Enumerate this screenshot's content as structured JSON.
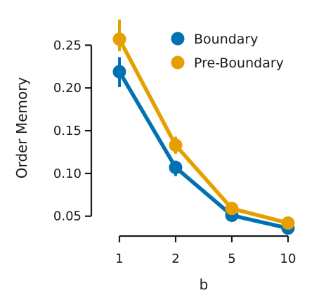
{
  "chart_data": {
    "type": "line",
    "title": "",
    "xlabel": "b",
    "ylabel": "Order Memory",
    "categories": [
      "1",
      "2",
      "5",
      "10"
    ],
    "ylim": [
      0.035,
      0.27
    ],
    "yticks": [
      "0.05",
      "0.10",
      "0.15",
      "0.20",
      "0.25"
    ],
    "grid": false,
    "legend_position": "top-right",
    "series": [
      {
        "name": "Boundary",
        "color": "#0072B2",
        "values": [
          0.219,
          0.107,
          0.051,
          0.036
        ],
        "err_low": [
          0.201,
          0.097,
          0.047,
          0.034
        ],
        "err_high": [
          0.236,
          0.115,
          0.055,
          0.038
        ]
      },
      {
        "name": "Pre-Boundary",
        "color": "#E69F00",
        "values": [
          0.257,
          0.133,
          0.059,
          0.042
        ],
        "err_low": [
          0.243,
          0.123,
          0.055,
          0.04
        ],
        "err_high": [
          0.28,
          0.143,
          0.063,
          0.044
        ]
      }
    ]
  }
}
